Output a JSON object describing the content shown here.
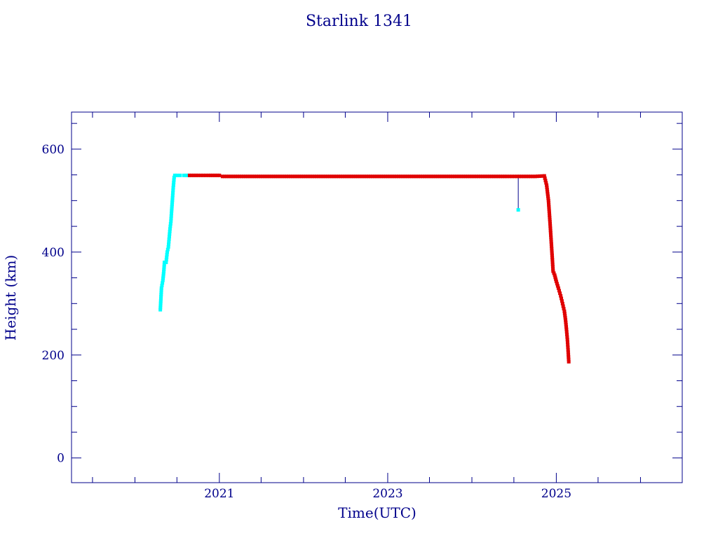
{
  "chart_data": {
    "type": "scatter",
    "title": "Starlink 1341",
    "xlabel": "Time(UTC)",
    "ylabel": "Height (km)",
    "xlim": [
      "2019-04-01",
      "2026-07-01"
    ],
    "ylim": [
      -48,
      672
    ],
    "x_ticks": [
      "2021",
      "2023",
      "2025"
    ],
    "y_ticks": [
      0,
      200,
      400,
      600
    ],
    "grid": false,
    "colors": {
      "frame": "#00008b",
      "text": "#00008b",
      "cyan_points": "#00ffff",
      "red_points": "#e00000",
      "connector": "#00008b"
    },
    "series": [
      {
        "color": "cyan",
        "points": [
          [
            "2020-04-20",
            288
          ],
          [
            "2020-04-25",
            330
          ],
          [
            "2020-05-01",
            345
          ],
          [
            "2020-05-05",
            362
          ],
          [
            "2020-05-08",
            380
          ],
          [
            "2020-05-15",
            380
          ],
          [
            "2020-05-20",
            400
          ],
          [
            "2020-05-25",
            410
          ],
          [
            "2020-05-28",
            425
          ],
          [
            "2020-06-01",
            445
          ],
          [
            "2020-06-05",
            460
          ],
          [
            "2020-06-08",
            480
          ],
          [
            "2020-06-12",
            505
          ],
          [
            "2020-06-15",
            525
          ],
          [
            "2020-06-19",
            545
          ],
          [
            "2020-06-22",
            549
          ],
          [
            "2020-07-01",
            549
          ],
          [
            "2020-07-15",
            549
          ],
          [
            "2020-08-01",
            549
          ],
          [
            "2020-08-20",
            549
          ],
          [
            "2024-07-20",
            482
          ]
        ]
      },
      {
        "color": "red",
        "points": [
          [
            "2020-08-25",
            549
          ],
          [
            "2020-10-01",
            549
          ],
          [
            "2020-11-15",
            549
          ],
          [
            "2021-01-01",
            549
          ],
          [
            "2021-01-15",
            547
          ],
          [
            "2021-06-01",
            547
          ],
          [
            "2022-01-01",
            547
          ],
          [
            "2022-06-01",
            547
          ],
          [
            "2023-01-01",
            547
          ],
          [
            "2023-06-01",
            547
          ],
          [
            "2024-01-01",
            547
          ],
          [
            "2024-06-01",
            547
          ],
          [
            "2024-07-15",
            547
          ],
          [
            "2024-10-01",
            547
          ],
          [
            "2024-11-10",
            548
          ],
          [
            "2024-11-20",
            530
          ],
          [
            "2024-11-28",
            500
          ],
          [
            "2024-12-05",
            455
          ],
          [
            "2024-12-10",
            420
          ],
          [
            "2024-12-15",
            385
          ],
          [
            "2024-12-18",
            363
          ],
          [
            "2024-12-25",
            355
          ],
          [
            "2025-01-01",
            343
          ],
          [
            "2025-01-10",
            330
          ],
          [
            "2025-01-20",
            315
          ],
          [
            "2025-01-28",
            300
          ],
          [
            "2025-02-05",
            285
          ],
          [
            "2025-02-10",
            268
          ],
          [
            "2025-02-14",
            250
          ],
          [
            "2025-02-18",
            230
          ],
          [
            "2025-02-21",
            210
          ],
          [
            "2025-02-24",
            187
          ]
        ]
      }
    ],
    "annotations": [
      {
        "type": "vertical-line",
        "x": "2024-07-20",
        "y_from": 482,
        "y_to": 547
      }
    ]
  }
}
